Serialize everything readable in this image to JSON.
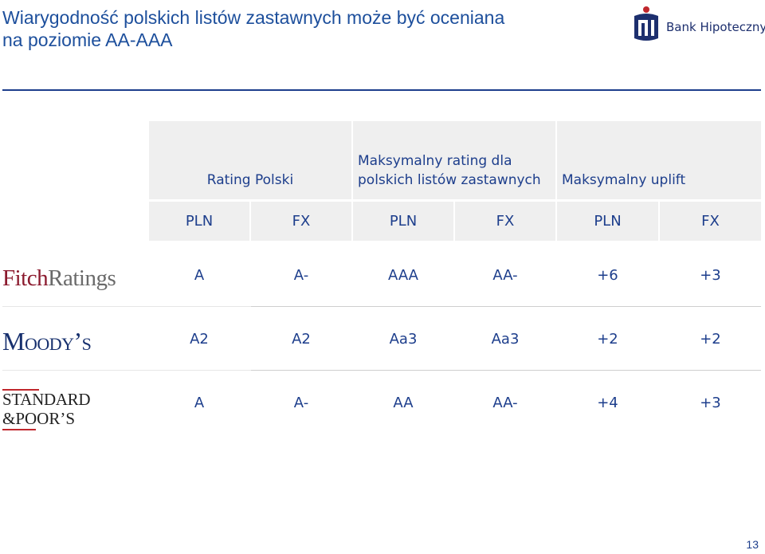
{
  "title": {
    "line1": "Wiarygodność polskich listów zastawnych może być oceniana",
    "line2": "na poziomie AA-AAA"
  },
  "brand": {
    "name": "Bank Hipoteczny",
    "logo_icon": "pko-logo-icon",
    "color": "#1d2f6e"
  },
  "table": {
    "headers": [
      "Rating Polski",
      "Maksymalny rating dla polskich listów zastawnych",
      "Maksymalny uplift"
    ],
    "subheaders": [
      "PLN",
      "FX",
      "PLN",
      "FX",
      "PLN",
      "FX"
    ],
    "rows": [
      {
        "agency": "Fitch Ratings",
        "agency_part1": "Fitch",
        "agency_part2": "Ratings",
        "values": [
          "A",
          "A-",
          "AAA",
          "AA-",
          "+6",
          "+3"
        ]
      },
      {
        "agency": "Moody’s",
        "values": [
          "A2",
          "A2",
          "Aa3",
          "Aa3",
          "+2",
          "+2"
        ]
      },
      {
        "agency": "Standard & Poor’s",
        "agency_line1": "STANDARD",
        "agency_line2": "&POOR’S",
        "values": [
          "A",
          "A-",
          "AA",
          "AA-",
          "+4",
          "+3"
        ]
      }
    ]
  },
  "page_number": "13",
  "colors": {
    "title": "#1d4f9c",
    "text": "#1d3e8c",
    "header_bg": "#efefef",
    "fitch": "#8b1a2e",
    "moodys": "#17306e",
    "sp_accent": "#c0272d"
  }
}
